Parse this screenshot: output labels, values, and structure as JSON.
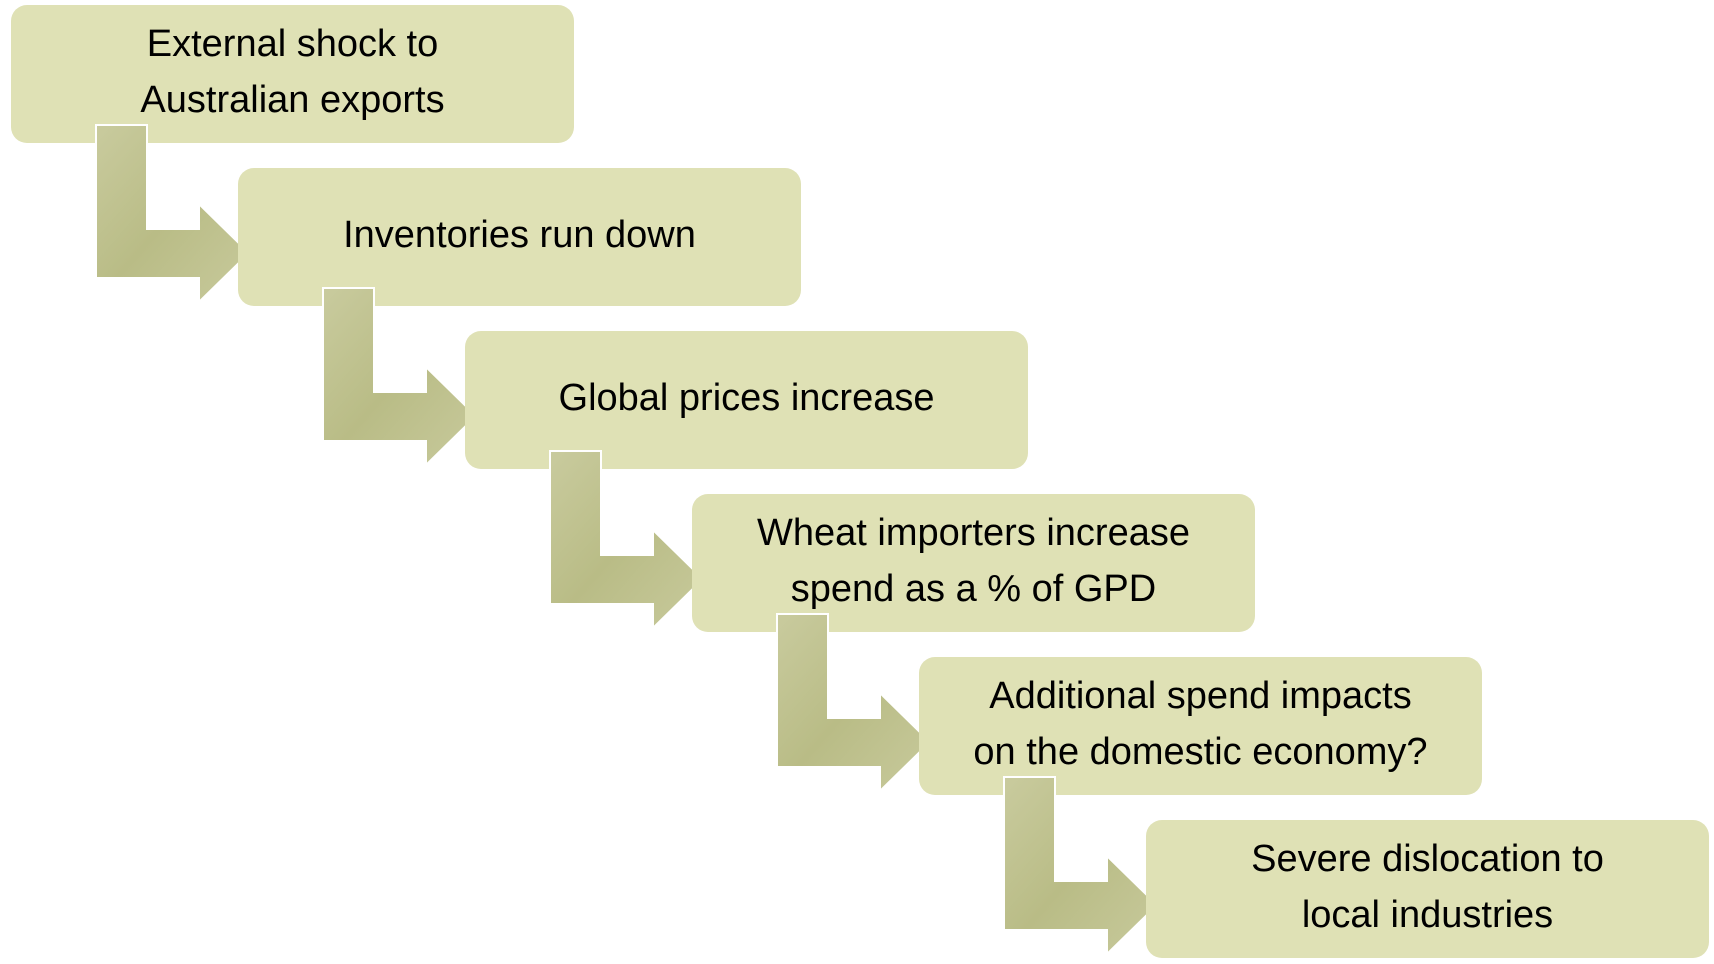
{
  "steps": [
    {
      "lines": [
        "External shock to",
        "Australian exports"
      ]
    },
    {
      "lines": [
        "Inventories run down"
      ]
    },
    {
      "lines": [
        "Global prices increase"
      ]
    },
    {
      "lines": [
        "Wheat importers increase",
        "spend as a % of GPD"
      ]
    },
    {
      "lines": [
        "Additional spend impacts",
        "on the domestic economy?"
      ]
    },
    {
      "lines": [
        "Severe dislocation to",
        "local industries"
      ]
    }
  ]
}
